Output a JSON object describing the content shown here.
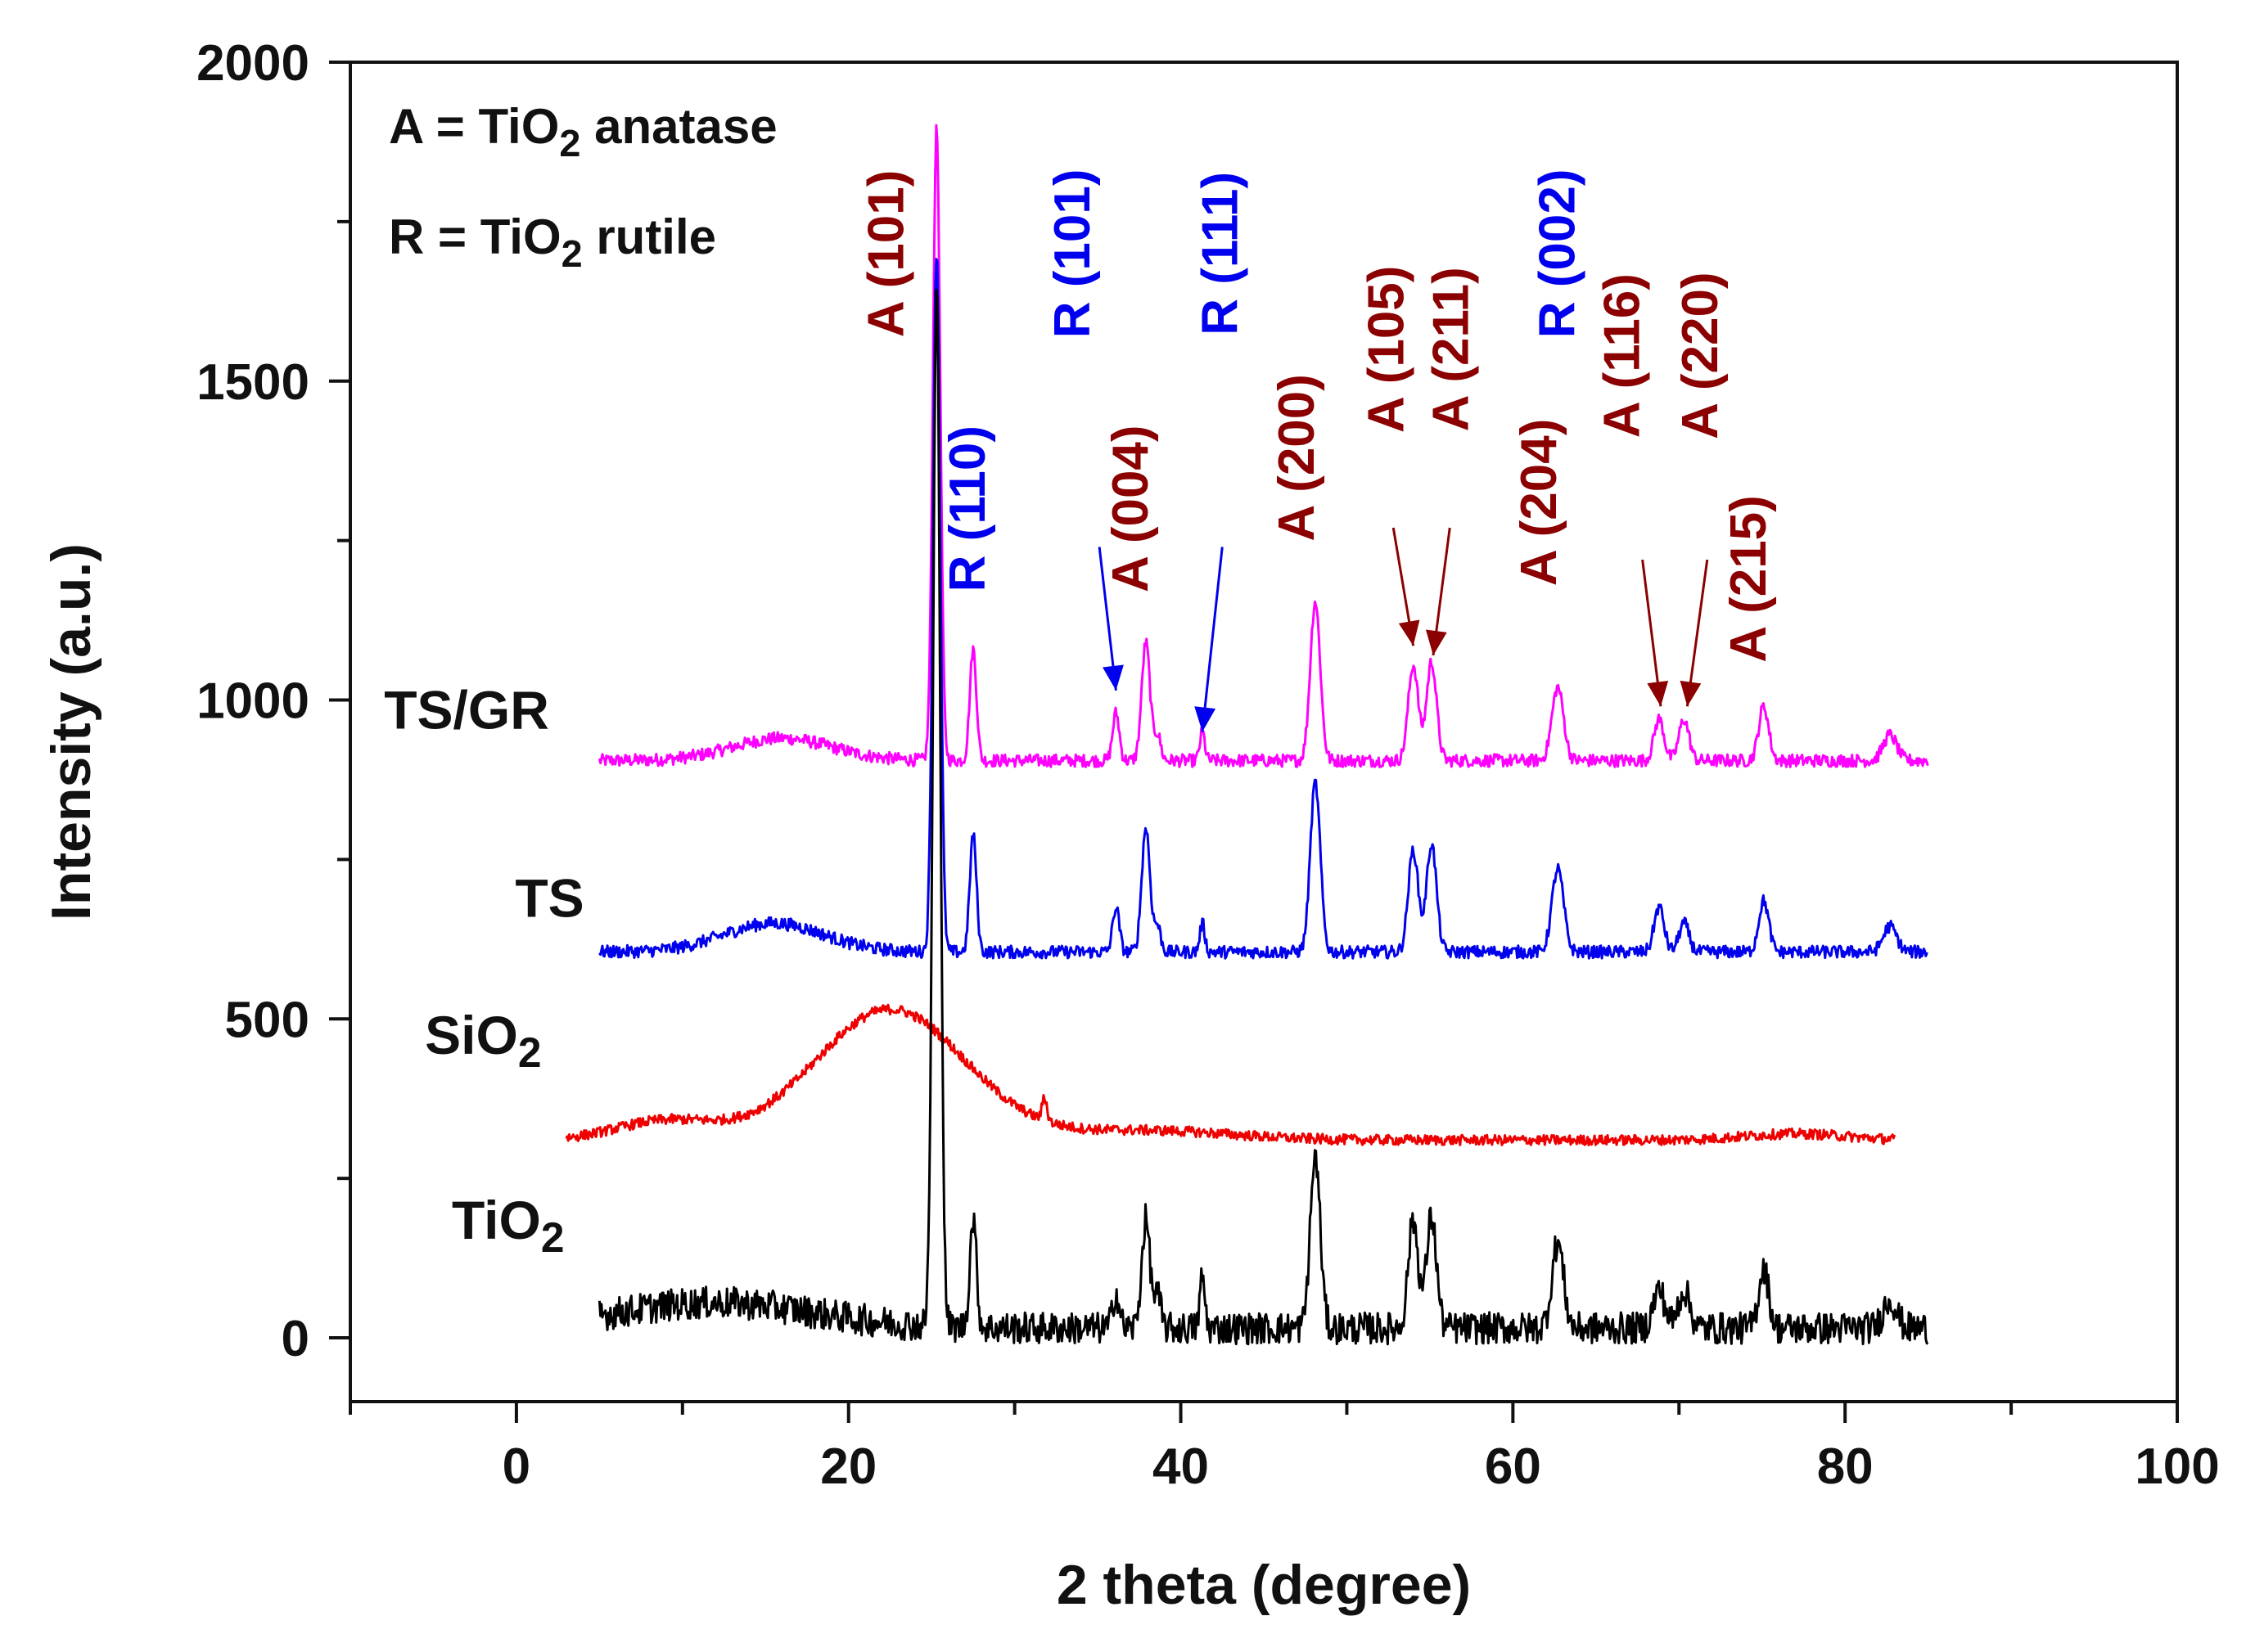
{
  "chart_data": {
    "type": "line",
    "title": "",
    "xlabel": "2 theta (degree)",
    "ylabel": "Intensity (a.u.)",
    "xlim": [
      -10,
      100
    ],
    "ylim": [
      -100,
      2000
    ],
    "xticks": [
      0,
      20,
      40,
      60,
      80,
      100
    ],
    "yticks": [
      0,
      500,
      1000,
      1500,
      2000
    ],
    "grid": false,
    "legend_notes": [
      {
        "prefix": "A = TiO",
        "sub": "2",
        "suffix": " anatase"
      },
      {
        "prefix": "R = TiO",
        "sub": "2",
        "suffix": " rutile"
      }
    ],
    "series": [
      {
        "name": "TS/GR",
        "name_base": "TS/GR",
        "name_sub": "",
        "color": "#ff00ff",
        "x_range": [
          5,
          85
        ],
        "baseline": 905,
        "noise": 10,
        "peaks": [
          [
            16,
            35,
            3
          ],
          [
            25.3,
            990,
            0.22
          ],
          [
            27.5,
            175,
            0.2
          ],
          [
            36.1,
            75,
            0.2
          ],
          [
            37.9,
            185,
            0.25
          ],
          [
            38.6,
            40,
            0.2
          ],
          [
            41.3,
            45,
            0.15
          ],
          [
            48.1,
            250,
            0.3
          ],
          [
            54.0,
            150,
            0.3
          ],
          [
            55.1,
            155,
            0.3
          ],
          [
            62.7,
            115,
            0.35
          ],
          [
            68.8,
            65,
            0.3
          ],
          [
            70.3,
            65,
            0.3
          ],
          [
            75.1,
            85,
            0.3
          ],
          [
            82.7,
            40,
            0.4
          ]
        ]
      },
      {
        "name": "TS",
        "name_base": "TS",
        "name_sub": "",
        "color": "#0000ee",
        "x_range": [
          5,
          85
        ],
        "baseline": 605,
        "noise": 10,
        "peaks": [
          [
            15.5,
            45,
            3
          ],
          [
            25.3,
            1100,
            0.22
          ],
          [
            27.5,
            185,
            0.2
          ],
          [
            36.1,
            70,
            0.2
          ],
          [
            37.9,
            195,
            0.25
          ],
          [
            38.6,
            40,
            0.2
          ],
          [
            41.3,
            45,
            0.15
          ],
          [
            48.1,
            265,
            0.3
          ],
          [
            54.0,
            160,
            0.3
          ],
          [
            55.1,
            170,
            0.3
          ],
          [
            62.7,
            130,
            0.35
          ],
          [
            68.8,
            70,
            0.3
          ],
          [
            70.3,
            45,
            0.3
          ],
          [
            75.1,
            80,
            0.3
          ],
          [
            82.7,
            40,
            0.4
          ]
        ]
      },
      {
        "name": "SiO2",
        "name_base": "SiO",
        "name_sub": "2",
        "color": "#ee0000",
        "x_range": [
          3,
          83
        ],
        "baseline": 310,
        "noise": 8,
        "peaks": [
          [
            22.5,
            205,
            4.5
          ],
          [
            9,
            30,
            3
          ],
          [
            31.8,
            35,
            0.15
          ],
          [
            38,
            15,
            5
          ],
          [
            77,
            10,
            3
          ]
        ]
      },
      {
        "name": "TiO2",
        "name_base": "TiO",
        "name_sub": "2",
        "color": "#000000",
        "x_range": [
          5,
          85
        ],
        "baseline": 15,
        "noise": 25,
        "peaks": [
          [
            12,
            40,
            6
          ],
          [
            25.3,
            1620,
            0.22
          ],
          [
            27.5,
            170,
            0.2
          ],
          [
            36.1,
            55,
            0.2
          ],
          [
            37.9,
            170,
            0.25
          ],
          [
            38.6,
            50,
            0.2
          ],
          [
            41.3,
            80,
            0.15
          ],
          [
            48.1,
            270,
            0.3
          ],
          [
            54.0,
            170,
            0.3
          ],
          [
            55.1,
            175,
            0.3
          ],
          [
            62.7,
            135,
            0.35
          ],
          [
            68.8,
            60,
            0.35
          ],
          [
            70.3,
            60,
            0.35
          ],
          [
            75.1,
            95,
            0.3
          ],
          [
            82.7,
            45,
            0.4
          ]
        ]
      }
    ],
    "peak_labels": [
      {
        "text": "A (101)",
        "phase": "A",
        "x": 23.3,
        "y": 1700
      },
      {
        "text": "R (110)",
        "phase": "R",
        "x": 28.2,
        "y": 1300
      },
      {
        "text": "R (101)",
        "phase": "R",
        "x": 34.5,
        "y": 1700
      },
      {
        "text": "A (004)",
        "phase": "A",
        "x": 38.0,
        "y": 1300
      },
      {
        "text": "R (111)",
        "phase": "R",
        "x": 43.4,
        "y": 1700
      },
      {
        "text": "A (200)",
        "phase": "A",
        "x": 48.0,
        "y": 1380
      },
      {
        "text": "A (105)",
        "phase": "A",
        "x": 53.4,
        "y": 1550
      },
      {
        "text": "A (211)",
        "phase": "A",
        "x": 57.3,
        "y": 1550
      },
      {
        "text": "A (204)",
        "phase": "A",
        "x": 62.6,
        "y": 1310
      },
      {
        "text": "R (002)",
        "phase": "R",
        "x": 63.7,
        "y": 1700
      },
      {
        "text": "A (116)",
        "phase": "A",
        "x": 67.6,
        "y": 1540
      },
      {
        "text": "A (220)",
        "phase": "A",
        "x": 72.3,
        "y": 1540
      },
      {
        "text": "A (215)",
        "phase": "A",
        "x": 75.2,
        "y": 1190
      }
    ],
    "arrows": [
      {
        "phase": "R",
        "from": [
          35.1,
          1240
        ],
        "to": [
          36.1,
          1015
        ]
      },
      {
        "phase": "R",
        "from": [
          42.5,
          1240
        ],
        "to": [
          41.3,
          950
        ]
      },
      {
        "phase": "A",
        "from": [
          52.8,
          1270
        ],
        "to": [
          54.0,
          1085
        ]
      },
      {
        "phase": "A",
        "from": [
          56.2,
          1270
        ],
        "to": [
          55.2,
          1070
        ]
      },
      {
        "phase": "A",
        "from": [
          67.8,
          1220
        ],
        "to": [
          68.9,
          990
        ]
      },
      {
        "phase": "A",
        "from": [
          71.7,
          1220
        ],
        "to": [
          70.5,
          990
        ]
      }
    ],
    "phase_colors": {
      "A": "#8b0000",
      "R": "#0000ee"
    }
  }
}
